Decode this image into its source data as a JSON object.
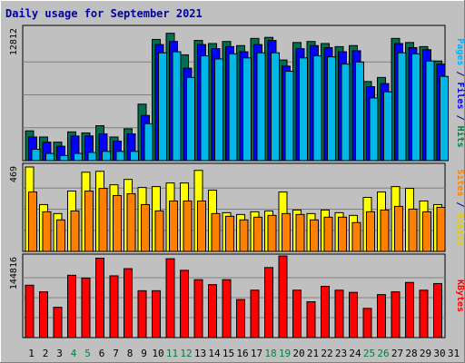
{
  "chart_data": {
    "type": "bar",
    "title": "Daily usage for September 2021",
    "categories": [
      "1",
      "2",
      "3",
      "4",
      "5",
      "6",
      "7",
      "8",
      "9",
      "10",
      "11",
      "12",
      "13",
      "14",
      "15",
      "16",
      "17",
      "18",
      "19",
      "20",
      "21",
      "22",
      "23",
      "24",
      "25",
      "26",
      "27",
      "28",
      "29",
      "30",
      "31"
    ],
    "weekend_days": [
      "4",
      "5",
      "11",
      "12",
      "18",
      "19",
      "25",
      "26"
    ],
    "panels": [
      {
        "id": "hits",
        "ymax_label": "12812",
        "ymax": 12812,
        "label_parts": [
          {
            "text": "Pages",
            "color": "#00b0ff"
          },
          {
            "text": " / ",
            "color": "#000080"
          },
          {
            "text": "Files",
            "color": "#0000ff"
          },
          {
            "text": " / ",
            "color": "#000080"
          },
          {
            "text": "Hits",
            "color": "#008040"
          }
        ],
        "series": [
          {
            "name": "Hits",
            "color": "#006f4f",
            "values": [
              2900,
              2300,
              1800,
              2800,
              2700,
              3400,
              2300,
              3100,
              5500,
              11800,
              12400,
              10300,
              11700,
              11400,
              11600,
              11200,
              11900,
              12000,
              9800,
              11500,
              11600,
              11400,
              11100,
              11200,
              7700,
              8100,
              11900,
              11500,
              11100,
              9700
            ]
          },
          {
            "name": "Files",
            "color": "#0000ff",
            "values": [
              2300,
              1800,
              1400,
              2400,
              2400,
              2600,
              1900,
              2600,
              4400,
              11300,
              11600,
              9000,
              11300,
              10900,
              11100,
              10600,
              11300,
              11700,
              9200,
              10900,
              11200,
              11000,
              10600,
              10700,
              7200,
              7500,
              11400,
              11000,
              10800,
              9400
            ]
          },
          {
            "name": "Pages",
            "color": "#00b8e8",
            "values": [
              1100,
              700,
              500,
              700,
              800,
              900,
              900,
              900,
              3600,
              10500,
              10600,
              8100,
              10200,
              9900,
              10400,
              10000,
              10500,
              10500,
              8700,
              10000,
              10200,
              10100,
              9400,
              9600,
              6100,
              6700,
              10500,
              10400,
              9700,
              8200
            ]
          }
        ]
      },
      {
        "id": "visits",
        "ymax_label": "469",
        "ymax": 469,
        "label_parts": [
          {
            "text": "Sites",
            "color": "#ff8000"
          },
          {
            "text": " / ",
            "color": "#000080"
          },
          {
            "text": "Visits",
            "color": "#e0d000"
          }
        ],
        "series": [
          {
            "name": "Visits",
            "color": "#ffff00",
            "values": [
              469,
              260,
              210,
              335,
              440,
              445,
              370,
              400,
              355,
              360,
              380,
              380,
              450,
              340,
              215,
              205,
              220,
              225,
              330,
              230,
              210,
              230,
              215,
              200,
              300,
              330,
              360,
              350,
              280,
              260
            ]
          },
          {
            "name": "Sites",
            "color": "#ff8000",
            "values": [
              330,
              220,
              175,
              225,
              335,
              350,
              310,
              320,
              260,
              225,
              280,
              280,
              280,
              210,
              195,
              175,
              190,
              200,
              210,
              205,
              175,
              190,
              190,
              160,
              220,
              230,
              250,
              235,
              220,
              245
            ]
          }
        ]
      },
      {
        "id": "kbytes",
        "ymax_label": "144816",
        "ymax": 144816,
        "label_parts": [
          {
            "text": "KBytes",
            "color": "#ff0000"
          }
        ],
        "series": [
          {
            "name": "KBytes",
            "color": "#ff0000",
            "values": [
              95000,
              83000,
              55000,
              113000,
              108000,
              144000,
              112000,
              125000,
              85000,
              85000,
              143000,
              122000,
              105000,
              96000,
              105000,
              69000,
              86000,
              127000,
              148000,
              86000,
              65000,
              93000,
              86000,
              82000,
              53000,
              78000,
              83000,
              100000,
              86000,
              98000
            ]
          }
        ]
      }
    ]
  }
}
